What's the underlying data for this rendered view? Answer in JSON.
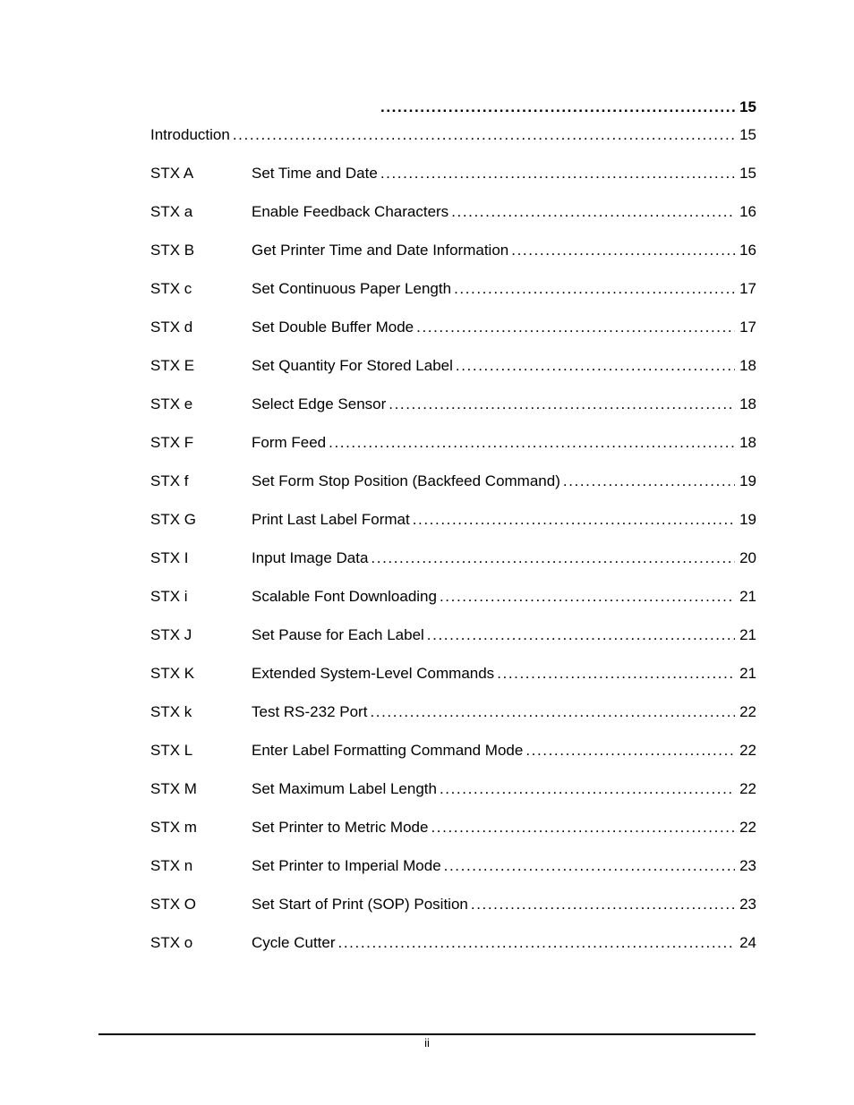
{
  "colors": {
    "text": "#000000",
    "background": "#ffffff"
  },
  "page": {
    "footer_page_label": "ii"
  },
  "toc": {
    "lead_entry": {
      "page": "15"
    },
    "intro_entry": {
      "title": "Introduction",
      "page": "15"
    },
    "entries": [
      {
        "cmd": "STX A",
        "title": "Set Time and Date",
        "page": "15"
      },
      {
        "cmd": "STX a",
        "title": "Enable Feedback Characters",
        "page": "16"
      },
      {
        "cmd": "STX B",
        "title": "Get Printer Time and Date Information",
        "page": "16"
      },
      {
        "cmd": "STX c",
        "title": "Set Continuous Paper Length",
        "page": "17"
      },
      {
        "cmd": "STX d",
        "title": "Set Double Buffer Mode",
        "page": "17"
      },
      {
        "cmd": "STX E",
        "title": "Set Quantity For Stored Label",
        "page": "18"
      },
      {
        "cmd": "STX e",
        "title": "Select Edge Sensor",
        "page": "18"
      },
      {
        "cmd": "STX F",
        "title": "Form Feed",
        "page": "18"
      },
      {
        "cmd": "STX f",
        "title": "Set Form Stop Position (Backfeed Command)",
        "page": "19"
      },
      {
        "cmd": "STX G",
        "title": "Print Last Label Format",
        "page": "19"
      },
      {
        "cmd": "STX I",
        "title": "Input Image Data",
        "page": "20"
      },
      {
        "cmd": "STX i",
        "title": "Scalable Font Downloading",
        "page": "21"
      },
      {
        "cmd": "STX J",
        "title": "Set Pause for Each Label",
        "page": "21"
      },
      {
        "cmd": "STX K",
        "title": "Extended System-Level Commands",
        "page": "21"
      },
      {
        "cmd": "STX k",
        "title": "Test RS-232 Port",
        "page": "22"
      },
      {
        "cmd": "STX L",
        "title": "Enter Label Formatting Command Mode",
        "page": "22"
      },
      {
        "cmd": "STX M",
        "title": "Set Maximum Label Length",
        "page": "22"
      },
      {
        "cmd": "STX m",
        "title": "Set Printer to Metric Mode",
        "page": "22"
      },
      {
        "cmd": "STX n",
        "title": "Set Printer to Imperial Mode",
        "page": "23"
      },
      {
        "cmd": "STX O",
        "title": "Set Start of Print (SOP) Position",
        "page": "23"
      },
      {
        "cmd": "STX o",
        "title": "Cycle Cutter",
        "page": "24"
      }
    ]
  }
}
